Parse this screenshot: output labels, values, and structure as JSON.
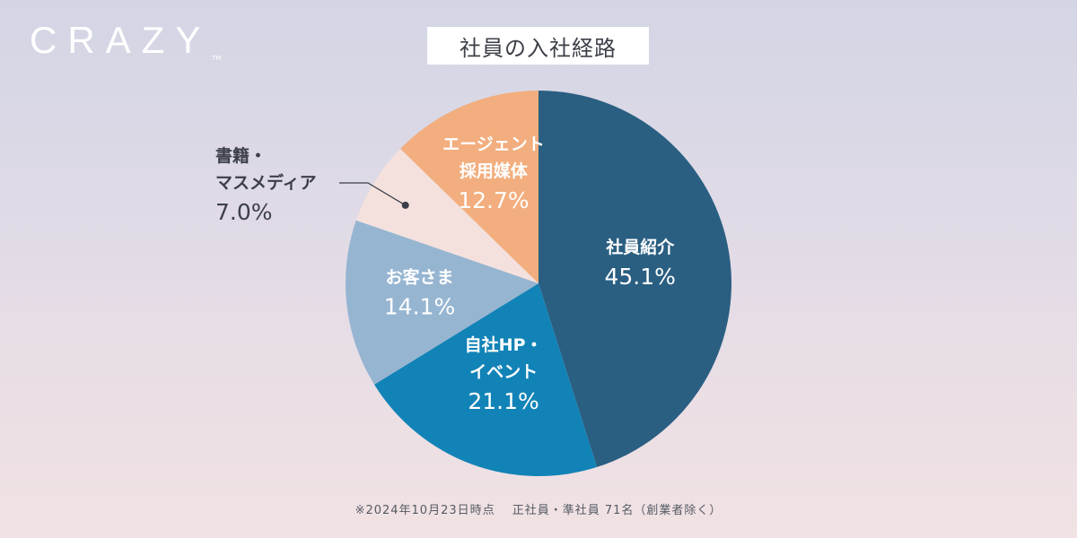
{
  "brand": {
    "logo_text": "CRAZY",
    "trademark": "TM"
  },
  "chart_data": {
    "type": "pie",
    "title": "社員の入社経路",
    "unit": "%",
    "start": "12 o'clock, clockwise",
    "slices": [
      {
        "name_lines": [
          "社員紹介"
        ],
        "value": 45.1,
        "color": "#2a5f82",
        "label_color": "#ffffff",
        "label_position": "inside"
      },
      {
        "name_lines": [
          "自社HP・",
          "イベント"
        ],
        "value": 21.1,
        "color": "#1283b7",
        "label_color": "#ffffff",
        "label_position": "inside"
      },
      {
        "name_lines": [
          "お客さま"
        ],
        "value": 14.1,
        "color": "#96b5d1",
        "label_color": "#ffffff",
        "label_position": "inside"
      },
      {
        "name_lines": [
          "書籍・",
          "マスメディア"
        ],
        "value": 7.0,
        "color": "#f4e1dd",
        "label_color": "#3c3f48",
        "label_position": "outside-left"
      },
      {
        "name_lines": [
          "エージェント",
          "採用媒体"
        ],
        "value": 12.7,
        "color": "#f2ae7e",
        "label_color": "#ffffff",
        "label_position": "inside"
      }
    ]
  },
  "footnote": "※2024年10月23日時点　 正社員・準社員 71名（創業者除く）"
}
